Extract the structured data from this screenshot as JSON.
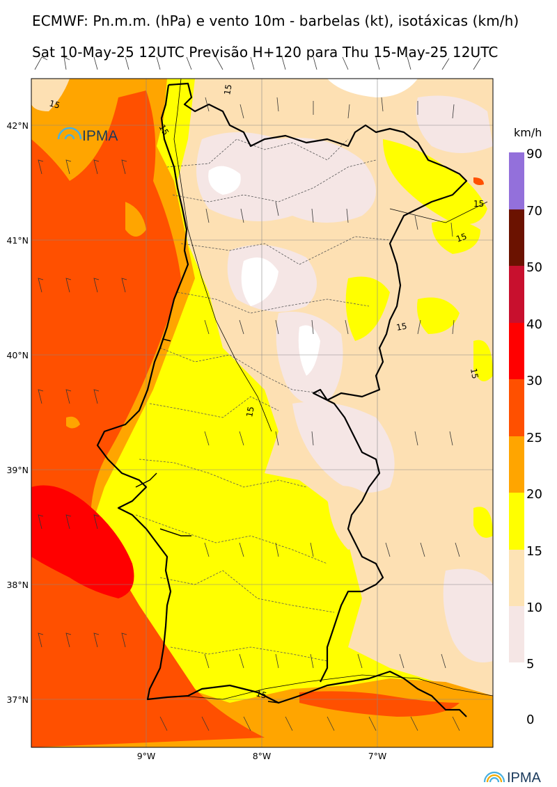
{
  "title_line1": "ECMWF: Pn.m.m. (hPa) e vento 10m - barbelas (kt), isotáxicas (km/h)",
  "title_line2": "Sat 10-May-25 12UTC Previsão H+120 para Thu 15-May-25 12UTC",
  "map": {
    "lat_labels": [
      "42°N",
      "41°N",
      "40°N",
      "39°N",
      "38°N",
      "37°N"
    ],
    "lon_labels": [
      "9°W",
      "8°W",
      "7°W"
    ],
    "contour_labels": [
      "15",
      "15",
      "15",
      "15",
      "15",
      "15",
      "15",
      "15",
      "15"
    ],
    "logo_text": "IPMA"
  },
  "colorbar": {
    "unit": "km/h",
    "ticks": [
      "90",
      "70",
      "50",
      "40",
      "30",
      "25",
      "20",
      "15",
      "10",
      "5",
      "0"
    ],
    "colors": [
      "#9370db",
      "#6b1200",
      "#c8102e",
      "#ff0000",
      "#ff5000",
      "#ffa500",
      "#ffff00",
      "#fde3b5",
      "#f5e6e5"
    ]
  },
  "footer_logo_text": "IPMA",
  "palette": {
    "orange_red": "#ff5000",
    "orange": "#ffa500",
    "yellow": "#ffff00",
    "peach": "#fde0b3",
    "pink": "#f5e6e5",
    "red": "#ff0000"
  }
}
